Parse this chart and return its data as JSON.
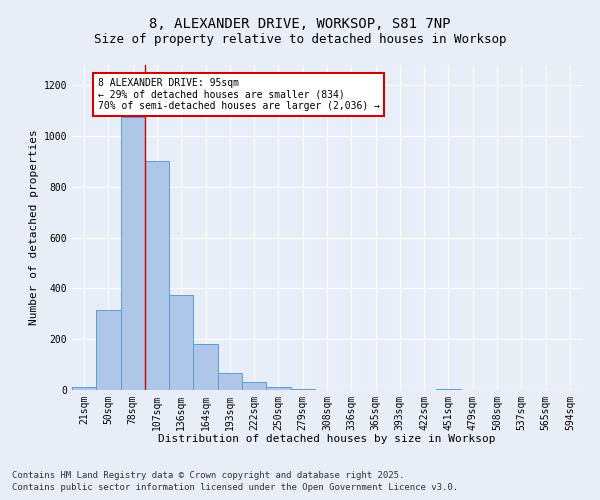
{
  "title1": "8, ALEXANDER DRIVE, WORKSOP, S81 7NP",
  "title2": "Size of property relative to detached houses in Worksop",
  "xlabel": "Distribution of detached houses by size in Worksop",
  "ylabel": "Number of detached properties",
  "categories": [
    "21sqm",
    "50sqm",
    "78sqm",
    "107sqm",
    "136sqm",
    "164sqm",
    "193sqm",
    "222sqm",
    "250sqm",
    "279sqm",
    "308sqm",
    "336sqm",
    "365sqm",
    "393sqm",
    "422sqm",
    "451sqm",
    "479sqm",
    "508sqm",
    "537sqm",
    "565sqm",
    "594sqm"
  ],
  "values": [
    10,
    315,
    1075,
    900,
    375,
    180,
    65,
    30,
    10,
    5,
    0,
    0,
    0,
    0,
    0,
    5,
    0,
    0,
    0,
    0,
    0
  ],
  "bar_color": "#aec6e8",
  "bar_edge_color": "#5a9fd4",
  "red_line_x": 2.5,
  "annotation_text": "8 ALEXANDER DRIVE: 95sqm\n← 29% of detached houses are smaller (834)\n70% of semi-detached houses are larger (2,036) →",
  "annotation_box_color": "#ffffff",
  "annotation_box_edge": "#cc0000",
  "ylim": [
    0,
    1280
  ],
  "yticks": [
    0,
    200,
    400,
    600,
    800,
    1000,
    1200
  ],
  "background_color": "#e8eef8",
  "grid_color": "#ffffff",
  "footer1": "Contains HM Land Registry data © Crown copyright and database right 2025.",
  "footer2": "Contains public sector information licensed under the Open Government Licence v3.0.",
  "title1_fontsize": 10,
  "title2_fontsize": 9,
  "axis_label_fontsize": 8,
  "tick_fontsize": 7,
  "annotation_fontsize": 7,
  "footer_fontsize": 6.5
}
